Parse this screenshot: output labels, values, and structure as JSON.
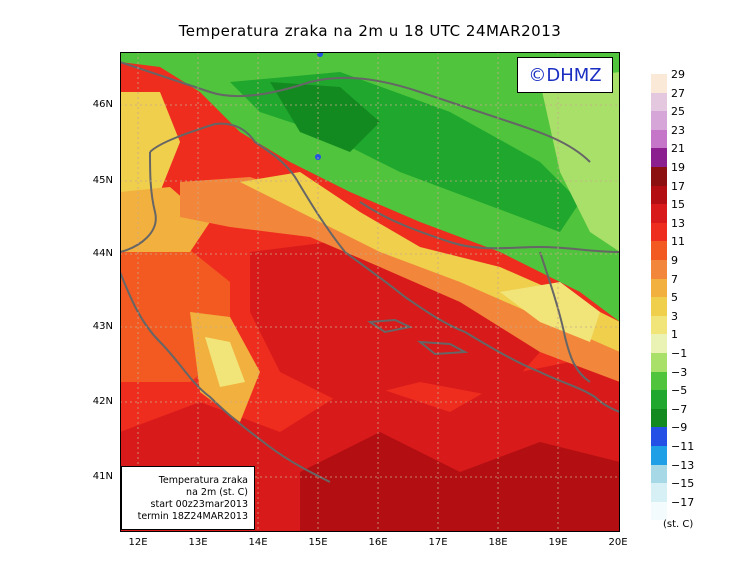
{
  "title": "Temperatura zraka na 2m u 18 UTC 24MAR2013",
  "watermark": "©DHMZ",
  "info_box": {
    "lines": [
      "Temperatura zraka",
      "na 2m (st. C)",
      "start 00z23mar2013",
      "termin 18Z24MAR2013"
    ]
  },
  "latitude_labels": [
    "46N",
    "45N",
    "44N",
    "43N",
    "42N",
    "41N"
  ],
  "longitude_labels": [
    "12E",
    "13E",
    "14E",
    "15E",
    "16E",
    "17E",
    "18E",
    "19E",
    "20E"
  ],
  "legend": {
    "unit": "(st. C)",
    "entries": [
      {
        "label": "29",
        "color": "#fbe9d7"
      },
      {
        "label": "27",
        "color": "#e3c8e0"
      },
      {
        "label": "25",
        "color": "#d6a6d8"
      },
      {
        "label": "23",
        "color": "#c576c9"
      },
      {
        "label": "21",
        "color": "#8b1f8f"
      },
      {
        "label": "19",
        "color": "#8c1010"
      },
      {
        "label": "17",
        "color": "#b30f12"
      },
      {
        "label": "15",
        "color": "#d81a1a"
      },
      {
        "label": "13",
        "color": "#ee2d1f"
      },
      {
        "label": "11",
        "color": "#f35a22"
      },
      {
        "label": "9",
        "color": "#f2863a"
      },
      {
        "label": "7",
        "color": "#f2b03e"
      },
      {
        "label": "5",
        "color": "#f0cf4d"
      },
      {
        "label": "3",
        "color": "#f1e57a"
      },
      {
        "label": "1",
        "color": "#eaf2b4"
      },
      {
        "label": "−1",
        "color": "#a8e06a"
      },
      {
        "label": "−3",
        "color": "#4fc43c"
      },
      {
        "label": "−5",
        "color": "#1fa72e"
      },
      {
        "label": "−7",
        "color": "#138a20"
      },
      {
        "label": "−9",
        "color": "#2550e6"
      },
      {
        "label": "−11",
        "color": "#1f9fe6"
      },
      {
        "label": "−13",
        "color": "#a6d8e6"
      },
      {
        "label": "−15",
        "color": "#d7f0f5"
      },
      {
        "label": "−17",
        "color": "#f4fbfd"
      }
    ]
  }
}
